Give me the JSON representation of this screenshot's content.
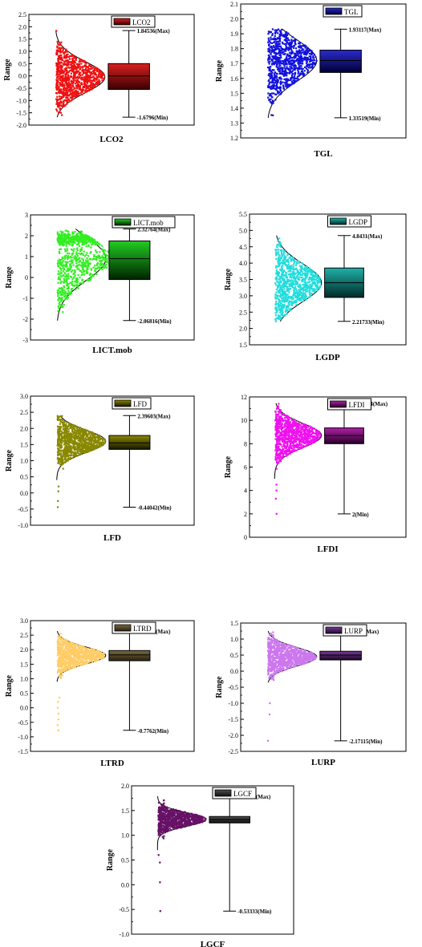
{
  "chart_data": [
    {
      "type": "box",
      "variable": "LCO2",
      "legend": "LCO2",
      "xlabel": "LCO2",
      "ylabel": "Range",
      "ylim": [
        -2.0,
        2.5
      ],
      "ticks": [
        "-2.0",
        "-1.5",
        "-1.0",
        "-0.5",
        "0.0",
        "0.5",
        "1.0",
        "1.5",
        "2.0",
        "2.5"
      ],
      "box": {
        "q1": -0.55,
        "median": 0.0,
        "q3": 0.5,
        "min": -1.6796,
        "max": 1.84536
      },
      "dist": {
        "lo": -1.6796,
        "hi": 1.84536,
        "center": -0.05,
        "sd": 0.55,
        "style": "band",
        "outliers": []
      },
      "max_label": "1.84536(Max)",
      "min_label": "-1.6796(Min)",
      "color": "#ee1111",
      "box_colors": [
        "#d92020",
        "#3a0000"
      ]
    },
    {
      "type": "box",
      "variable": "TGL",
      "legend": "TGL",
      "xlabel": "TGL",
      "ylabel": "Range",
      "ylim": [
        1.2,
        2.1
      ],
      "ticks": [
        "1.2",
        "1.3",
        "1.4",
        "1.5",
        "1.6",
        "1.7",
        "1.8",
        "1.9",
        "2.0",
        "2.1"
      ],
      "box": {
        "q1": 1.64,
        "median": 1.72,
        "q3": 1.79,
        "min": 1.33519,
        "max": 1.93117
      },
      "dist": {
        "lo": 1.33519,
        "hi": 1.93117,
        "center": 1.72,
        "sd": 0.12,
        "style": "band",
        "outliers": []
      },
      "max_label": "1.93117(Max)",
      "min_label": "1.33519(Min)",
      "color": "#1111dd",
      "box_colors": [
        "#2a2ad0",
        "#000030"
      ]
    },
    {
      "type": "box",
      "variable": "LICT.mob",
      "legend": "LICT.mob",
      "xlabel": "LICT.mob",
      "ylabel": "Range",
      "ylim": [
        -3,
        3
      ],
      "ticks": [
        "-3",
        "-2",
        "-1",
        "0",
        "1",
        "2",
        "3"
      ],
      "box": {
        "q1": -0.1,
        "median": 0.9,
        "q3": 1.75,
        "min": -2.06816,
        "max": 2.32764
      },
      "dist": {
        "lo": -2.06816,
        "hi": 2.32764,
        "center": 0.9,
        "sd": 0.9,
        "style": "cluster",
        "outliers": []
      },
      "max_label": "2.32764(Max)",
      "min_label": "-2.06816(Min)",
      "color": "#33ee22",
      "box_colors": [
        "#22cc22",
        "#002200"
      ]
    },
    {
      "type": "box",
      "variable": "LGDP",
      "legend": "LGDP",
      "xlabel": "LGDP",
      "ylabel": "Range",
      "ylim": [
        1.5,
        5.5
      ],
      "ticks": [
        "1.5",
        "2.0",
        "2.5",
        "3.0",
        "3.5",
        "4.0",
        "4.5",
        "5.0",
        "5.5"
      ],
      "box": {
        "q1": 2.95,
        "median": 3.4,
        "q3": 3.85,
        "min": 2.21733,
        "max": 4.8431
      },
      "dist": {
        "lo": 2.21733,
        "hi": 4.8431,
        "center": 3.4,
        "sd": 0.5,
        "style": "band",
        "outliers": []
      },
      "max_label": "4.8431(Max)",
      "min_label": "2.21733(Min)",
      "color": "#22dddd",
      "box_colors": [
        "#20b0a8",
        "#002a28"
      ]
    },
    {
      "type": "box",
      "variable": "LFD",
      "legend": "LFD",
      "xlabel": "LFD",
      "ylabel": "Range",
      "ylim": [
        -1.0,
        3.0
      ],
      "ticks": [
        "-1.0",
        "-0.5",
        "0.0",
        "0.5",
        "1.0",
        "1.5",
        "2.0",
        "2.5",
        "3.0"
      ],
      "box": {
        "q1": 1.35,
        "median": 1.55,
        "q3": 1.78,
        "min": -0.44042,
        "max": 2.39603
      },
      "dist": {
        "lo": 0.4,
        "hi": 2.39603,
        "center": 1.6,
        "sd": 0.3,
        "style": "skew",
        "outliers": [
          -0.44042,
          -0.25,
          0.05,
          0.2
        ]
      },
      "max_label": "2.39603(Max)",
      "min_label": "-0.44042(Min)",
      "color": "#888800",
      "box_colors": [
        "#8a8a00",
        "#151500"
      ]
    },
    {
      "type": "box",
      "variable": "LFDI",
      "legend": "LFDI",
      "xlabel": "LFDI",
      "ylabel": "Range",
      "ylim": [
        0,
        12
      ],
      "ticks": [
        "0",
        "2",
        "4",
        "6",
        "8",
        "10",
        "12"
      ],
      "box": {
        "q1": 8.0,
        "median": 8.7,
        "q3": 9.35,
        "min": 2.0,
        "max": 11.46374
      },
      "dist": {
        "lo": 5.0,
        "hi": 11.46374,
        "center": 8.7,
        "sd": 0.9,
        "style": "skew",
        "outliers": [
          2.0,
          3.3,
          4.0,
          4.5
        ]
      },
      "max_label": "11.46374(Max)",
      "min_label": "2(Min)",
      "color": "#ee11ee",
      "box_colors": [
        "#b020a8",
        "#280028"
      ]
    },
    {
      "type": "box",
      "variable": "LTRD",
      "legend": "LTRD",
      "xlabel": "LTRD",
      "ylabel": "Range",
      "ylim": [
        -1.5,
        3.0
      ],
      "ticks": [
        "-1.5",
        "-1.0",
        "-0.5",
        "0.0",
        "0.5",
        "1.0",
        "1.5",
        "2.0",
        "2.5",
        "3.0"
      ],
      "box": {
        "q1": 1.62,
        "median": 1.82,
        "q3": 1.97,
        "min": -0.7762,
        "max": 2.64081
      },
      "dist": {
        "lo": 0.9,
        "hi": 2.64081,
        "center": 1.8,
        "sd": 0.25,
        "style": "skew",
        "outliers": [
          -0.7762,
          -0.6,
          -0.4,
          -0.2,
          0.0,
          0.2,
          0.35
        ]
      },
      "max_label": "2.64081(Max)",
      "min_label": "-0.7762(Min)",
      "color": "#ffcc66",
      "box_colors": [
        "#7a6a40",
        "#2a2210"
      ]
    },
    {
      "type": "box",
      "variable": "LURP",
      "legend": "LURP",
      "xlabel": "LURP",
      "ylabel": "Range",
      "ylim": [
        -2.5,
        1.5
      ],
      "ticks": [
        "-2.5",
        "-2.0",
        "-1.5",
        "-1.0",
        "-0.5",
        "0.0",
        "0.5",
        "1.0",
        "1.5"
      ],
      "box": {
        "q1": 0.35,
        "median": 0.5,
        "q3": 0.62,
        "min": -2.17115,
        "max": 1.2495
      },
      "dist": {
        "lo": -0.35,
        "hi": 1.2495,
        "center": 0.45,
        "sd": 0.25,
        "style": "skew",
        "outliers": [
          -2.17115,
          -1.35,
          -1.0
        ]
      },
      "max_label": "1.2495(Max)",
      "min_label": "-2.17115(Min)",
      "color": "#cc77ee",
      "box_colors": [
        "#7a3a9a",
        "#1a0a22"
      ]
    },
    {
      "type": "box",
      "variable": "LGCF",
      "legend": "LGCF",
      "xlabel": "LGCF",
      "ylabel": "Range",
      "ylim": [
        -1.0,
        2.0
      ],
      "ticks": [
        "-1.0",
        "-0.5",
        "0.0",
        "0.5",
        "1.0",
        "1.5",
        "2.0"
      ],
      "box": {
        "q1": 1.25,
        "median": 1.32,
        "q3": 1.38,
        "min": -0.53333,
        "max": 1.78865
      },
      "dist": {
        "lo": 0.7,
        "hi": 1.78865,
        "center": 1.32,
        "sd": 0.12,
        "style": "skew",
        "outliers": [
          -0.53333,
          0.05,
          0.45,
          0.6
        ]
      },
      "max_label": "1.78865(Max)",
      "min_label": "-0.53333(Min)",
      "color": "#661166",
      "box_colors": [
        "#505050",
        "#101010"
      ]
    }
  ]
}
